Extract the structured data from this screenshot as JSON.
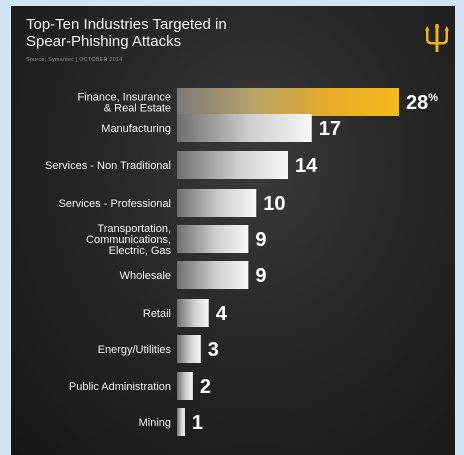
{
  "title": "Top-Ten Industries Targeted in\nSpear-Phishing Attacks",
  "source": "Source: Symantec  |  OCTOBER 2014",
  "logo_icon": "trident-logo-icon",
  "colors": {
    "highlight": "#f2b21c",
    "bar_light": "#f4f4f4",
    "bar_dark": "#6e6e6e",
    "text": "#ffffff",
    "background": "#222222"
  },
  "chart_data": {
    "type": "bar",
    "orientation": "horizontal",
    "title": "Top-Ten Industries Targeted in Spear-Phishing Attacks",
    "categories": [
      "Finance, Insurance\n& Real Estate",
      "Manufacturing",
      "Services - Non Traditional",
      "Services - Professional",
      "Transportation,\nCommunications,\nElectric, Gas",
      "Wholesale",
      "Retail",
      "Energy/Utilities",
      "Public Administration",
      "Mining"
    ],
    "values": [
      28,
      17,
      14,
      10,
      9,
      9,
      4,
      3,
      2,
      1
    ],
    "value_labels": [
      "28%",
      "17",
      "14",
      "10",
      "9",
      "9",
      "4",
      "3",
      "2",
      "1"
    ],
    "highlighted_index": 0,
    "xlabel": "",
    "ylabel": "",
    "xlim": [
      0,
      28
    ],
    "grid": false,
    "legend": "none"
  }
}
